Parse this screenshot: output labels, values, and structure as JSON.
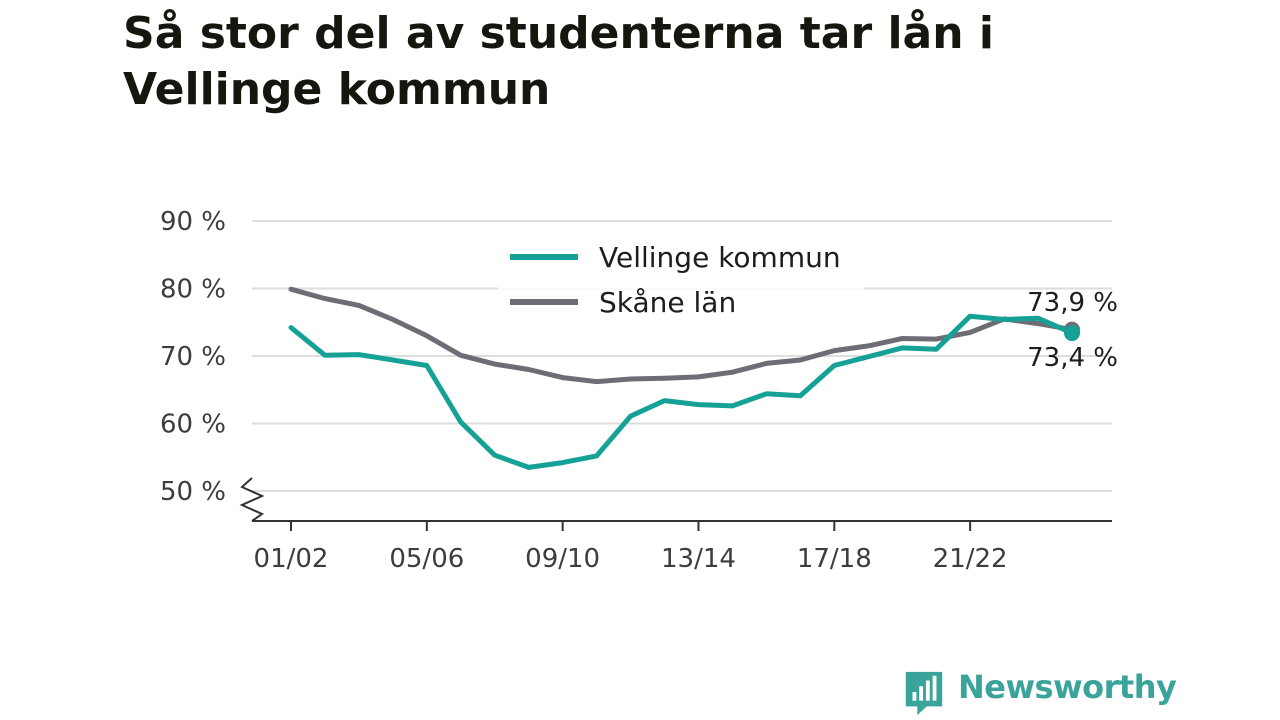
{
  "title": "Så stor del av studenterna tar lån i Vellinge kommun",
  "brand": {
    "name": "Newsworthy",
    "color": "#3aa39a",
    "icon": "bar-chart-speech-bubble-icon"
  },
  "chart_data": {
    "type": "line",
    "title": "Så stor del av studenterna tar lån i Vellinge kommun",
    "xlabel": "",
    "ylabel": "",
    "ylim": [
      45,
      90
    ],
    "yticks": [
      50,
      60,
      70,
      80,
      90
    ],
    "ytick_labels": [
      "50 %",
      "60 %",
      "70 %",
      "80 %",
      "90 %"
    ],
    "y_axis_break": true,
    "grid": true,
    "legend_position": "top-center",
    "x": [
      "01/02",
      "02/03",
      "03/04",
      "04/05",
      "05/06",
      "06/07",
      "07/08",
      "08/09",
      "09/10",
      "10/11",
      "11/12",
      "12/13",
      "13/14",
      "14/15",
      "15/16",
      "16/17",
      "17/18",
      "18/19",
      "19/20",
      "20/21",
      "21/22",
      "22/23",
      "23/24",
      "24/25"
    ],
    "xticks": [
      "01/02",
      "05/06",
      "09/10",
      "13/14",
      "17/18",
      "21/22"
    ],
    "series": [
      {
        "name": "Skåne län",
        "color": "#6e6d75",
        "values": [
          79.9,
          78.5,
          77.5,
          75.4,
          73.0,
          70.1,
          68.8,
          68.0,
          66.8,
          66.2,
          66.6,
          66.7,
          66.9,
          67.6,
          68.9,
          69.4,
          70.8,
          71.5,
          72.6,
          72.5,
          73.5,
          75.5,
          74.8,
          73.9
        ],
        "end_label": "73,9 %"
      },
      {
        "name": "Vellinge kommun",
        "color": "#16a197",
        "values": [
          74.2,
          70.1,
          70.2,
          69.4,
          68.6,
          60.2,
          55.3,
          53.5,
          54.2,
          55.2,
          61.1,
          63.4,
          62.8,
          62.6,
          64.4,
          64.1,
          68.6,
          69.9,
          71.2,
          71.0,
          75.9,
          75.4,
          75.6,
          73.4
        ],
        "end_label": "73,4 %"
      }
    ]
  }
}
